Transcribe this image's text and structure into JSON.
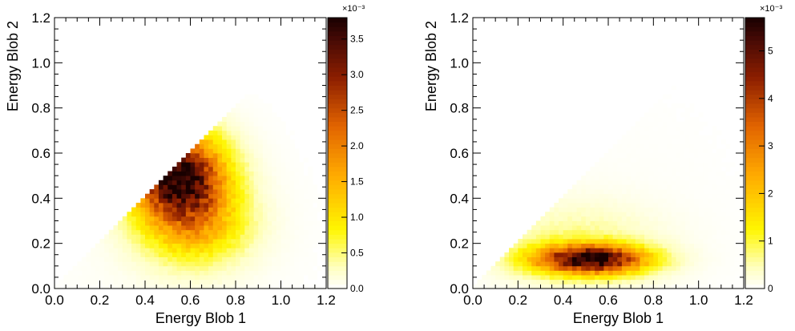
{
  "chart_data": [
    {
      "type": "heatmap",
      "xlabel": "Energy Blob 1",
      "ylabel": "Energy Blob 2",
      "xlim": [
        0.0,
        1.2
      ],
      "ylim": [
        0.0,
        1.2
      ],
      "x_ticks": [
        "0.0",
        "0.2",
        "0.4",
        "0.6",
        "0.8",
        "1.0",
        "1.2"
      ],
      "y_ticks": [
        "0.0",
        "0.2",
        "0.4",
        "0.6",
        "0.8",
        "1.0",
        "1.2"
      ],
      "colorbar": {
        "range": [
          0.0,
          3.8
        ],
        "exponent_label": "×10⁻³",
        "ticks": [
          0.0,
          0.5,
          1.0,
          1.5,
          2.0,
          2.5,
          3.0,
          3.5
        ],
        "tick_labels": [
          "0.0",
          "0.5",
          "1.0",
          "1.5",
          "2.0",
          "2.5",
          "3.0",
          "3.5"
        ]
      },
      "bins": 60,
      "constraint": "y <= x",
      "distribution": {
        "components": [
          {
            "cx": 0.55,
            "cy": 0.5,
            "sx": 0.14,
            "sy": 0.13,
            "amp": 3.7
          },
          {
            "cx": 0.62,
            "cy": 0.28,
            "sx": 0.16,
            "sy": 0.12,
            "amp": 1.3
          }
        ],
        "background": 0.08
      }
    },
    {
      "type": "heatmap",
      "xlabel": "Energy Blob 1",
      "ylabel": "Energy Blob 2",
      "xlim": [
        0.0,
        1.2
      ],
      "ylim": [
        0.0,
        1.2
      ],
      "x_ticks": [
        "0.0",
        "0.2",
        "0.4",
        "0.6",
        "0.8",
        "1.0",
        "1.2"
      ],
      "y_ticks": [
        "0.0",
        "0.2",
        "0.4",
        "0.6",
        "0.8",
        "1.0",
        "1.2"
      ],
      "colorbar": {
        "range": [
          0,
          5.7
        ],
        "exponent_label": "×10⁻³",
        "ticks": [
          0,
          1,
          2,
          3,
          4,
          5
        ],
        "tick_labels": [
          "0",
          "1",
          "2",
          "3",
          "4",
          "5"
        ]
      },
      "bins": 60,
      "constraint": "y <= x",
      "distribution": {
        "components": [
          {
            "cx": 0.52,
            "cy": 0.13,
            "sx": 0.17,
            "sy": 0.045,
            "amp": 5.4
          },
          {
            "cx": 0.45,
            "cy": 0.2,
            "sx": 0.25,
            "sy": 0.12,
            "amp": 0.6
          }
        ],
        "background": 0.1
      }
    }
  ]
}
